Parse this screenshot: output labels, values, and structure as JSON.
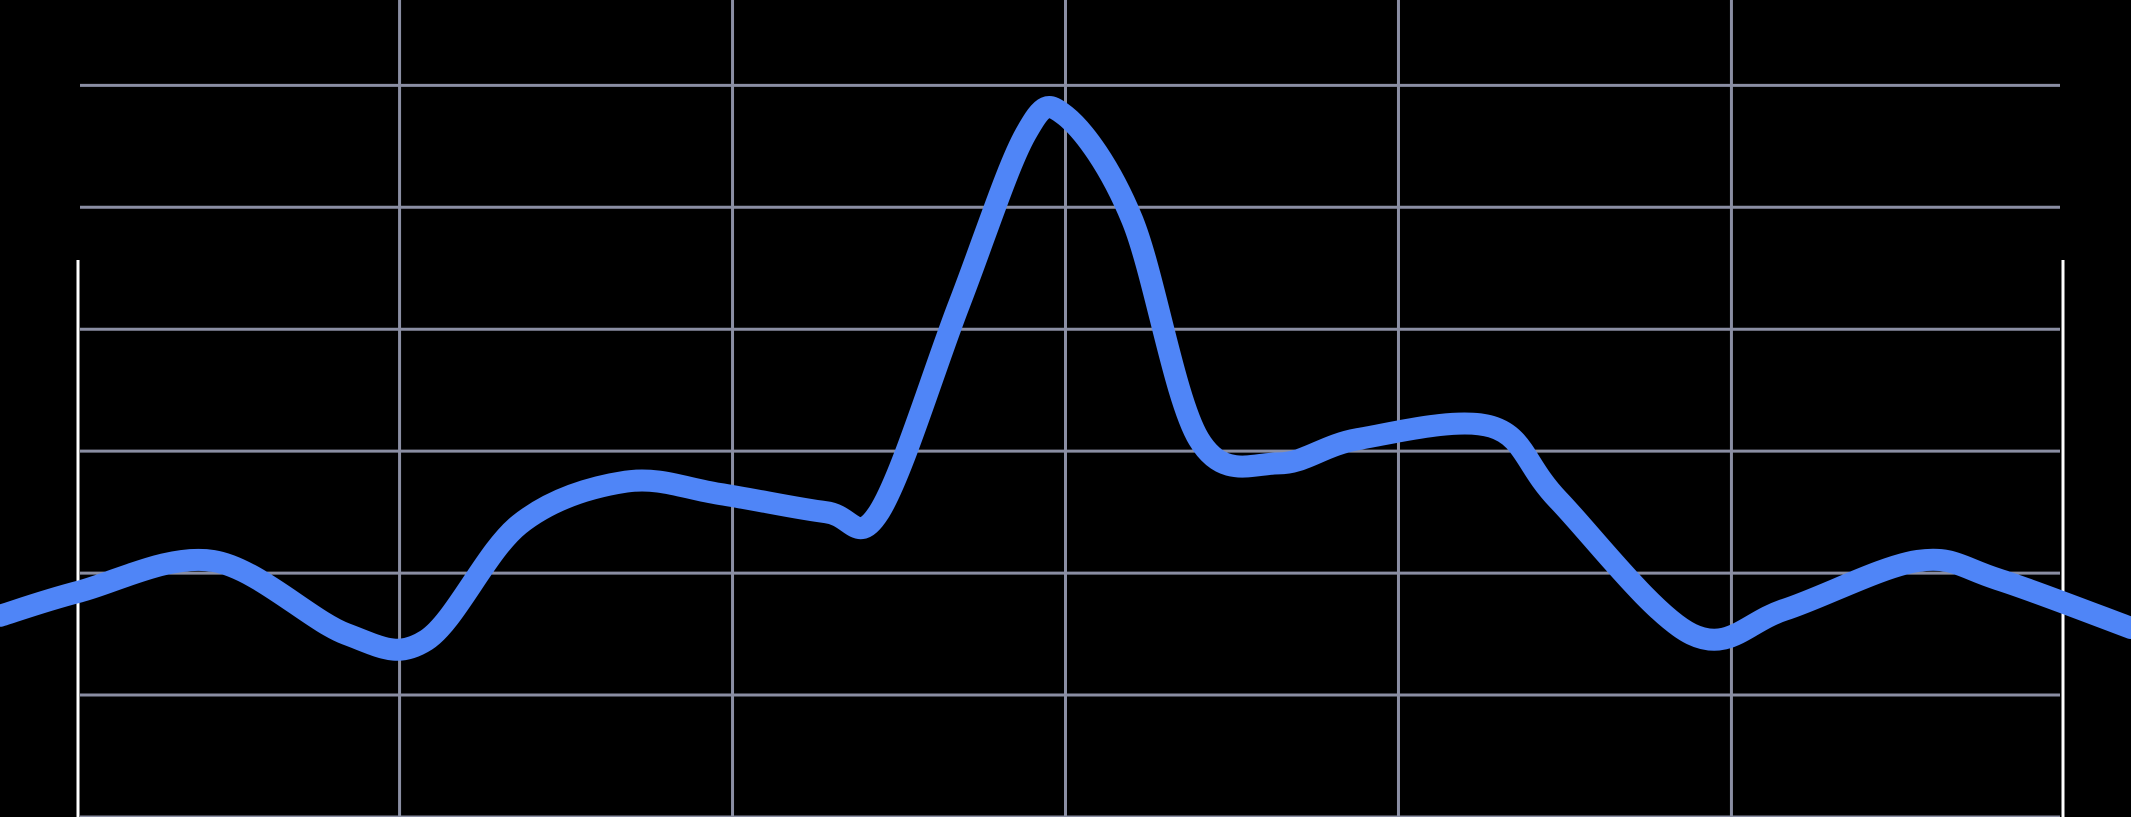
{
  "chart_data": {
    "type": "line",
    "title": "",
    "xlabel": "",
    "ylabel": "",
    "grid": true,
    "legend": "none",
    "xlim": [
      0,
      16
    ],
    "ylim": [
      0,
      6.7
    ],
    "x_gridlines": [
      3,
      5.5,
      8,
      10.5,
      13
    ],
    "y_gridlines": [
      0,
      1,
      2,
      3,
      4,
      5,
      6
    ],
    "colors": {
      "background": "#000000",
      "grid": "#8a8ea3",
      "line": "#4f85f7"
    },
    "series": [
      {
        "x": [
          0,
          0.6,
          1.6,
          2.6,
          3.2,
          3.9,
          4.7,
          5.4,
          6.2,
          6.6,
          7.2,
          7.7,
          8.0,
          8.5,
          9.0,
          9.6,
          10.2,
          11.2,
          11.7,
          12.7,
          13.4,
          14.4,
          15.0,
          16.0
        ],
        "y": [
          1.65,
          1.85,
          2.1,
          1.5,
          1.45,
          2.4,
          2.75,
          2.65,
          2.5,
          2.5,
          4.2,
          5.6,
          5.75,
          4.9,
          3.1,
          2.9,
          3.1,
          3.2,
          2.6,
          1.5,
          1.7,
          2.1,
          1.95,
          1.55
        ]
      }
    ]
  }
}
